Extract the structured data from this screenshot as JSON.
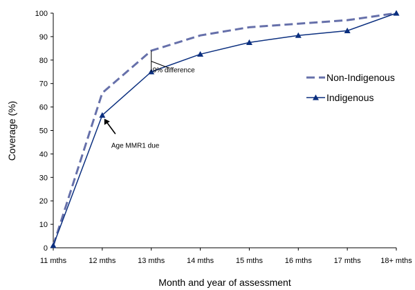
{
  "chart_data": {
    "type": "line",
    "categories": [
      "11 mths",
      "12 mths",
      "13 mths",
      "14 mths",
      "15 mths",
      "16 mths",
      "17 mths",
      "18+ mths"
    ],
    "series": [
      {
        "name": "Non-Indigenous",
        "values": [
          1,
          66,
          84,
          90.5,
          94,
          95.5,
          97,
          100
        ],
        "color": "#6670aa",
        "style": "dashed"
      },
      {
        "name": "Indigenous",
        "values": [
          1,
          56.5,
          75,
          82.5,
          87.5,
          90.5,
          92.5,
          100
        ],
        "color": "#0b2f7f",
        "style": "solid-triangle"
      }
    ],
    "xlabel": "Month and year of assessment",
    "ylabel": "Coverage (%)",
    "ylim": [
      0,
      100
    ],
    "yticks": [
      0,
      10,
      20,
      30,
      40,
      50,
      60,
      70,
      80,
      90,
      100
    ],
    "grid": false,
    "legend_position": "right",
    "annotations": [
      {
        "text": "9% difference",
        "category": "13 mths"
      },
      {
        "text": "Age MMR1 due",
        "category": "12 mths"
      }
    ]
  }
}
